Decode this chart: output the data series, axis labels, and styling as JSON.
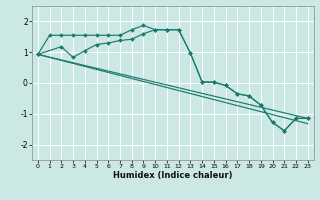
{
  "xlabel": "Humidex (Indice chaleur)",
  "xlim": [
    -0.5,
    23.5
  ],
  "ylim": [
    -2.5,
    2.5
  ],
  "yticks": [
    -2,
    -1,
    0,
    1,
    2
  ],
  "xticks": [
    0,
    1,
    2,
    3,
    4,
    5,
    6,
    7,
    8,
    9,
    10,
    11,
    12,
    13,
    14,
    15,
    16,
    17,
    18,
    19,
    20,
    21,
    22,
    23
  ],
  "bg_color": "#cce8e4",
  "grid_color": "#ffffff",
  "line_color": "#1a7a6e",
  "line1_x": [
    0,
    1,
    2,
    3,
    4,
    5,
    6,
    7,
    8,
    9,
    10,
    11,
    12,
    13,
    14,
    15,
    16,
    17,
    18,
    19,
    20,
    21,
    22,
    23
  ],
  "line1_y": [
    0.93,
    1.55,
    1.55,
    1.55,
    1.55,
    1.55,
    1.55,
    1.55,
    1.73,
    1.87,
    1.73,
    1.73,
    1.73,
    0.97,
    0.03,
    0.03,
    -0.08,
    -0.35,
    -0.42,
    -0.72,
    -1.28,
    -1.55,
    -1.15,
    -1.15
  ],
  "line2_x": [
    0,
    2,
    3,
    4,
    5,
    6,
    7,
    8,
    9,
    10,
    11,
    12,
    13,
    14,
    15,
    16,
    17,
    18,
    19,
    20,
    21,
    22,
    23
  ],
  "line2_y": [
    0.93,
    1.18,
    0.83,
    1.05,
    1.25,
    1.3,
    1.38,
    1.42,
    1.6,
    1.73,
    1.73,
    1.73,
    0.97,
    0.03,
    0.03,
    -0.08,
    -0.35,
    -0.42,
    -0.72,
    -1.28,
    -1.55,
    -1.15,
    -1.15
  ],
  "line3_x": [
    0,
    23
  ],
  "line3_y": [
    0.93,
    -1.15
  ],
  "line4_x": [
    0,
    23
  ],
  "line4_y": [
    0.93,
    -1.32
  ]
}
